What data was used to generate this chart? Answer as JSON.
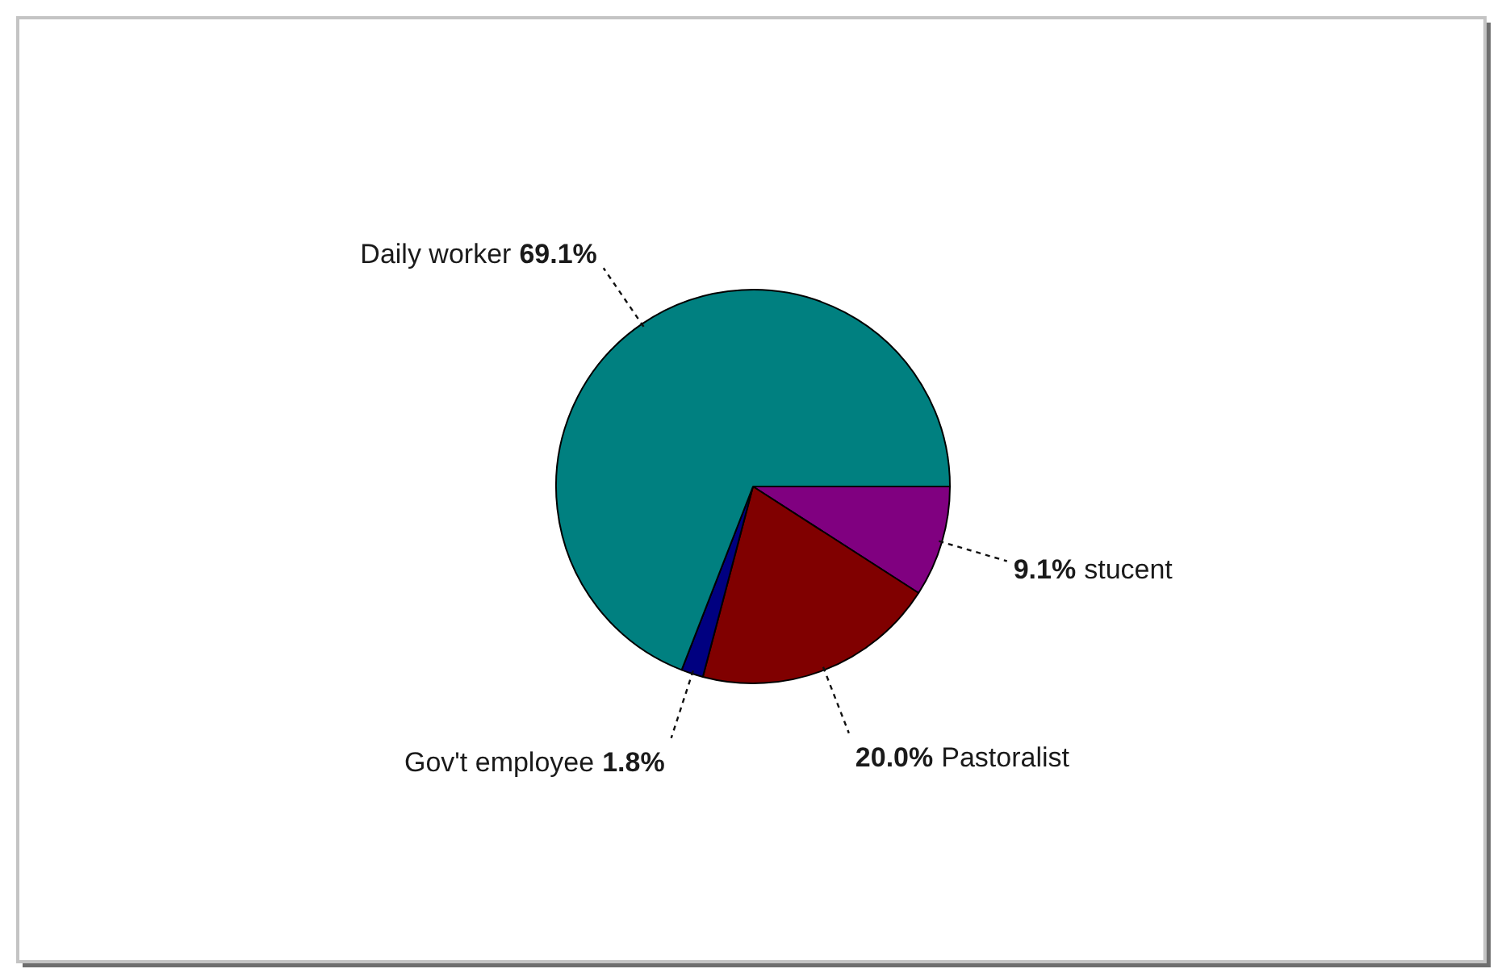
{
  "chart_data": {
    "type": "pie",
    "categories": [
      "stucent",
      "Pastoralist",
      "Gov't employee",
      "Daily worker"
    ],
    "values": [
      9.1,
      20.0,
      1.8,
      69.1
    ],
    "colors": [
      "#800080",
      "#800000",
      "#000080",
      "#008080"
    ],
    "value_labels": [
      "9.1%",
      "20.0%",
      "1.8%",
      "69.1%"
    ]
  }
}
